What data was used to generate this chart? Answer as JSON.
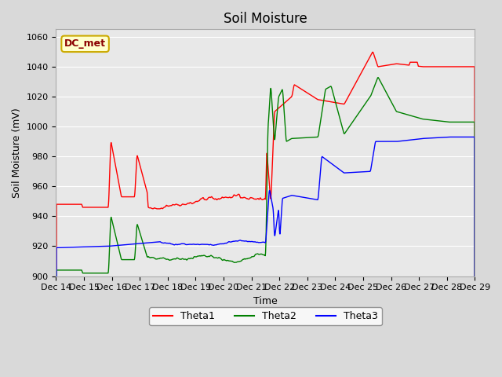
{
  "title": "Soil Moisture",
  "ylabel": "Soil Moisture (mV)",
  "xlabel": "Time",
  "ylim": [
    900,
    1065
  ],
  "yticks": [
    900,
    920,
    940,
    960,
    980,
    1000,
    1020,
    1040,
    1060
  ],
  "legend_items": [
    "Theta1",
    "Theta2",
    "Theta3"
  ],
  "legend_colors": [
    "red",
    "green",
    "blue"
  ],
  "annotation_text": "DC_met",
  "annotation_bg": "#ffffcc",
  "annotation_border": "#ccaa00",
  "annotation_text_color": "#8B0000",
  "x_tick_labels": [
    "Dec 14",
    "Dec 15",
    "Dec 16",
    "Dec 17",
    "Dec 18",
    "Dec 19",
    "Dec 20",
    "Dec 21",
    "Dec 22",
    "Dec 23",
    "Dec 24",
    "Dec 25",
    "Dec 26",
    "Dec 27",
    "Dec 28",
    "Dec 29"
  ]
}
